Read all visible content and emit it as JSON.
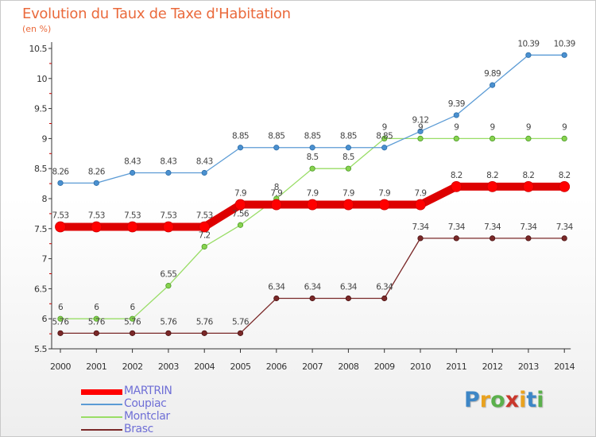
{
  "title": "Evolution du Taux de Taxe d'Habitation",
  "subtitle": "(en %)",
  "logo": {
    "text": "Proxiti",
    "letters": [
      {
        "ch": "P",
        "color": "#3d86c6"
      },
      {
        "ch": "r",
        "color": "#e9a21f"
      },
      {
        "ch": "o",
        "color": "#5bb04c"
      },
      {
        "ch": "x",
        "color": "#c9372c"
      },
      {
        "ch": "i",
        "color": "#e9a21f"
      },
      {
        "ch": "t",
        "color": "#3d86c6"
      },
      {
        "ch": "i",
        "color": "#5bb04c"
      }
    ]
  },
  "chart_data": {
    "type": "line",
    "title": "Evolution du Taux de Taxe d'Habitation",
    "ylabel": "(en %)",
    "xlabel": "",
    "ylim": [
      5.5,
      10.5
    ],
    "yticks": [
      "5.5",
      "6",
      "6.5",
      "7",
      "7.5",
      "8",
      "8.5",
      "9",
      "9.5",
      "10",
      "10.5"
    ],
    "grid": false,
    "legend_position": "bottom-left",
    "categories": [
      "2000",
      "2001",
      "2002",
      "2003",
      "2004",
      "2005",
      "2006",
      "2007",
      "2008",
      "2009",
      "2010",
      "2011",
      "2012",
      "2013",
      "2014"
    ],
    "series": [
      {
        "name": "MARTRIN",
        "color": "#ff0000",
        "values": [
          7.53,
          7.53,
          7.53,
          7.53,
          7.53,
          7.9,
          7.9,
          7.9,
          7.9,
          7.9,
          7.9,
          8.2,
          8.2,
          8.2,
          8.2
        ],
        "labels": [
          "7.53",
          "7.53",
          "7.53",
          "7.53",
          "7.53",
          "7.9",
          "7.9",
          "7.9",
          "7.9",
          "7.9",
          "7.9",
          "8.2",
          "8.2",
          "8.2",
          "8.2"
        ]
      },
      {
        "name": "Coupiac",
        "color": "#5b9bd5",
        "values": [
          8.26,
          8.26,
          8.43,
          8.43,
          8.43,
          8.85,
          8.85,
          8.85,
          8.85,
          8.85,
          9.12,
          9.39,
          9.89,
          10.39,
          10.39
        ],
        "labels": [
          "8.26",
          "8.26",
          "8.43",
          "8.43",
          "8.43",
          "8.85",
          "8.85",
          "8.85",
          "8.85",
          "8.85",
          "9.12",
          "9.39",
          "9.89",
          "10.39",
          "10.39"
        ]
      },
      {
        "name": "Montclar",
        "color": "#99dd66",
        "values": [
          6,
          6,
          6,
          6.55,
          7.2,
          7.56,
          8,
          8.5,
          8.5,
          9,
          9,
          9,
          9,
          9,
          9
        ],
        "labels": [
          "6",
          "6",
          "6",
          "6.55",
          "7.2",
          "7.56",
          "8",
          "8.5",
          "8.5",
          "9",
          "9",
          "9",
          "9",
          "9",
          "9"
        ]
      },
      {
        "name": "Brasc",
        "color": "#7a2828",
        "values": [
          5.76,
          5.76,
          5.76,
          5.76,
          5.76,
          5.76,
          6.34,
          6.34,
          6.34,
          6.34,
          7.34,
          7.34,
          7.34,
          7.34,
          7.34
        ],
        "labels": [
          "5.76",
          "5.76",
          "5.76",
          "5.76",
          "5.76",
          "5.76",
          "6.34",
          "6.34",
          "6.34",
          "6.34",
          "7.34",
          "7.34",
          "7.34",
          "7.34",
          "7.34"
        ]
      }
    ]
  }
}
